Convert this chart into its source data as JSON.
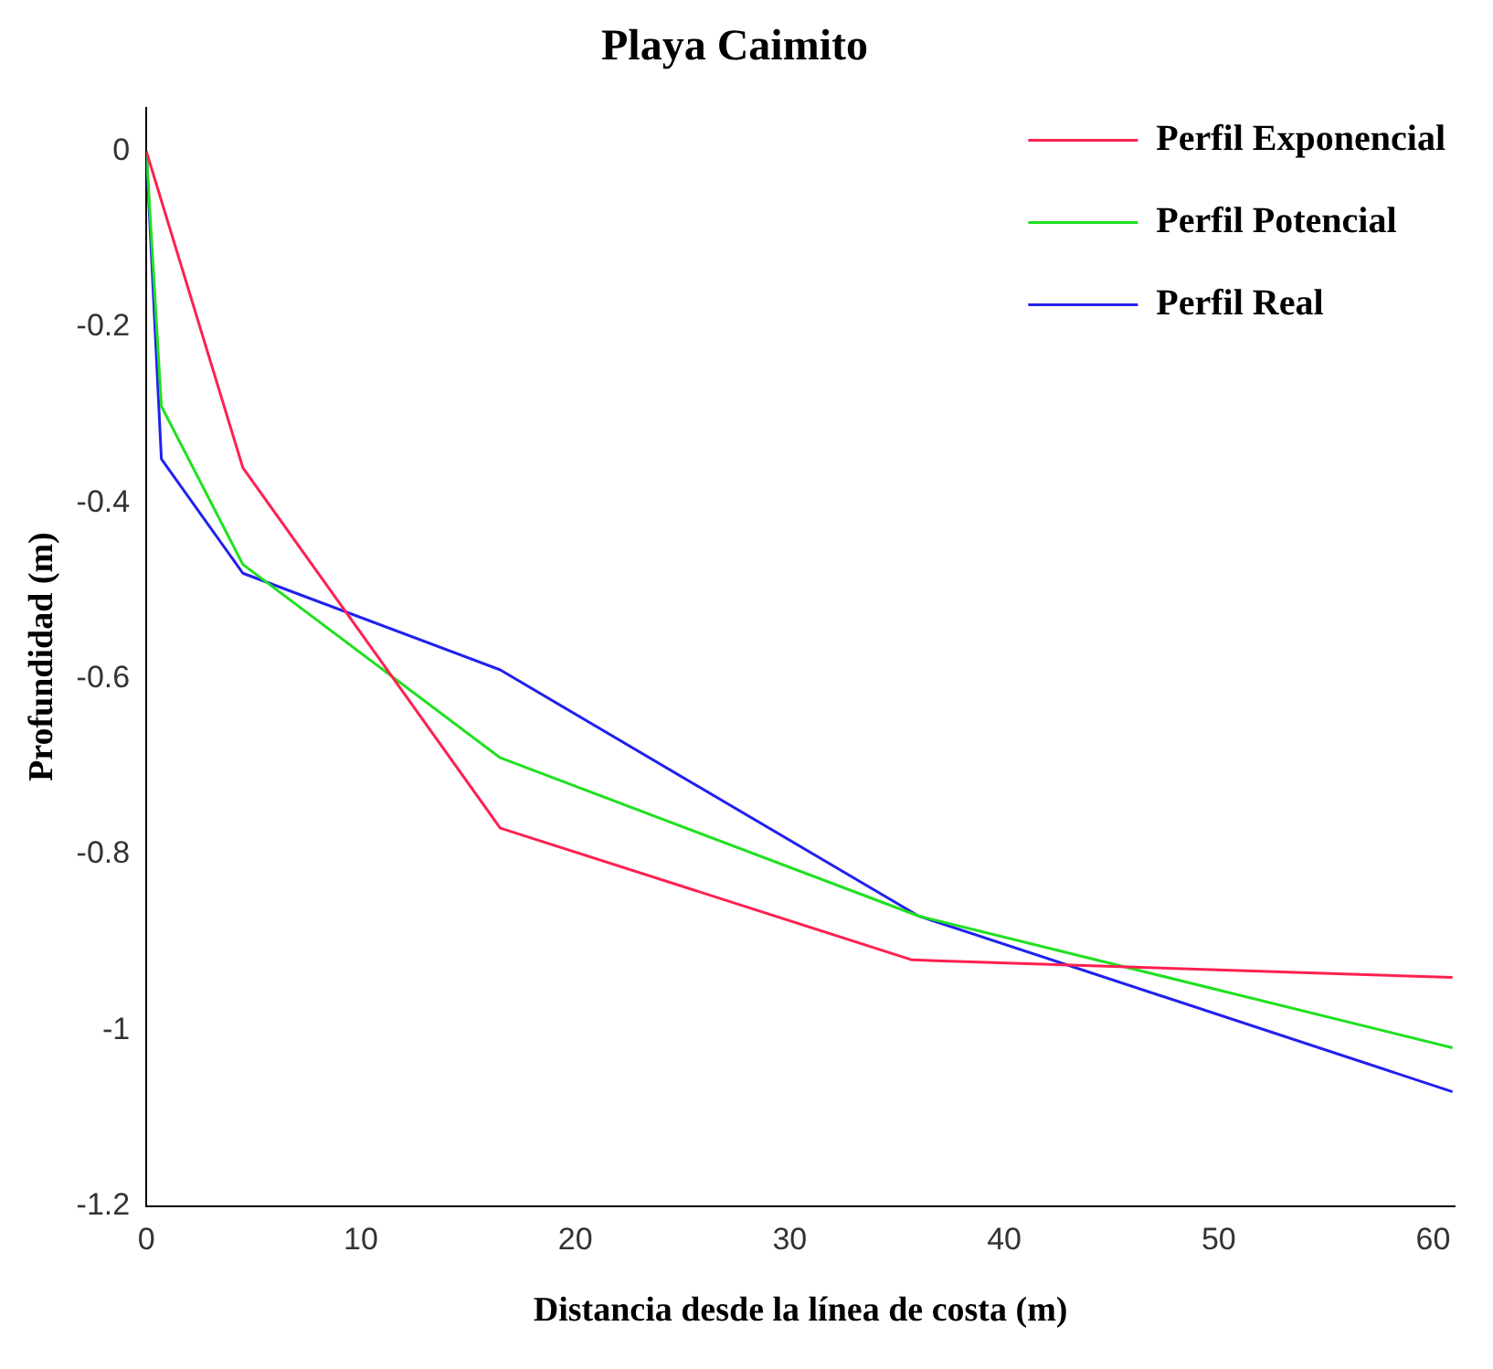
{
  "chart_data": {
    "type": "line",
    "title": "Playa Caimito",
    "xlabel": "Distancia desde la línea de costa (m)",
    "ylabel": "Profundidad (m)",
    "xlim": [
      0,
      61
    ],
    "xticks": [
      0,
      10,
      20,
      30,
      40,
      50,
      60
    ],
    "ylim": [
      -1.2,
      0.05
    ],
    "yticks": [
      {
        "value": 0,
        "label": "0"
      },
      {
        "value": -0.2,
        "label": "-0.2"
      },
      {
        "value": -0.4,
        "label": "-0.4"
      },
      {
        "value": -0.6,
        "label": "-0.6"
      },
      {
        "value": -0.8,
        "label": "-0.8"
      },
      {
        "value": -1,
        "label": "-1"
      },
      {
        "value": -1.2,
        "label": "-1.2"
      }
    ],
    "grid": false,
    "legend": "top right",
    "marker": "none",
    "line_style": "solid",
    "series": [
      {
        "name": "Perfil Exponencial",
        "color": "#ff2050",
        "x": [
          0,
          4.5,
          16.5,
          35.7,
          60.9
        ],
        "values": [
          0,
          -0.36,
          -0.77,
          -0.92,
          -0.94
        ]
      },
      {
        "name": "Perfil Potencial",
        "color": "#20e020",
        "x": [
          0,
          0.7,
          4.5,
          16.5,
          36,
          60.9
        ],
        "values": [
          0,
          -0.29,
          -0.47,
          -0.69,
          -0.87,
          -1.02
        ]
      },
      {
        "name": "Perfil Real",
        "color": "#2020f0",
        "x": [
          0,
          0.7,
          4.5,
          16.5,
          36,
          60.9
        ],
        "values": [
          0,
          -0.35,
          -0.48,
          -0.59,
          -0.87,
          -1.07
        ]
      }
    ]
  }
}
